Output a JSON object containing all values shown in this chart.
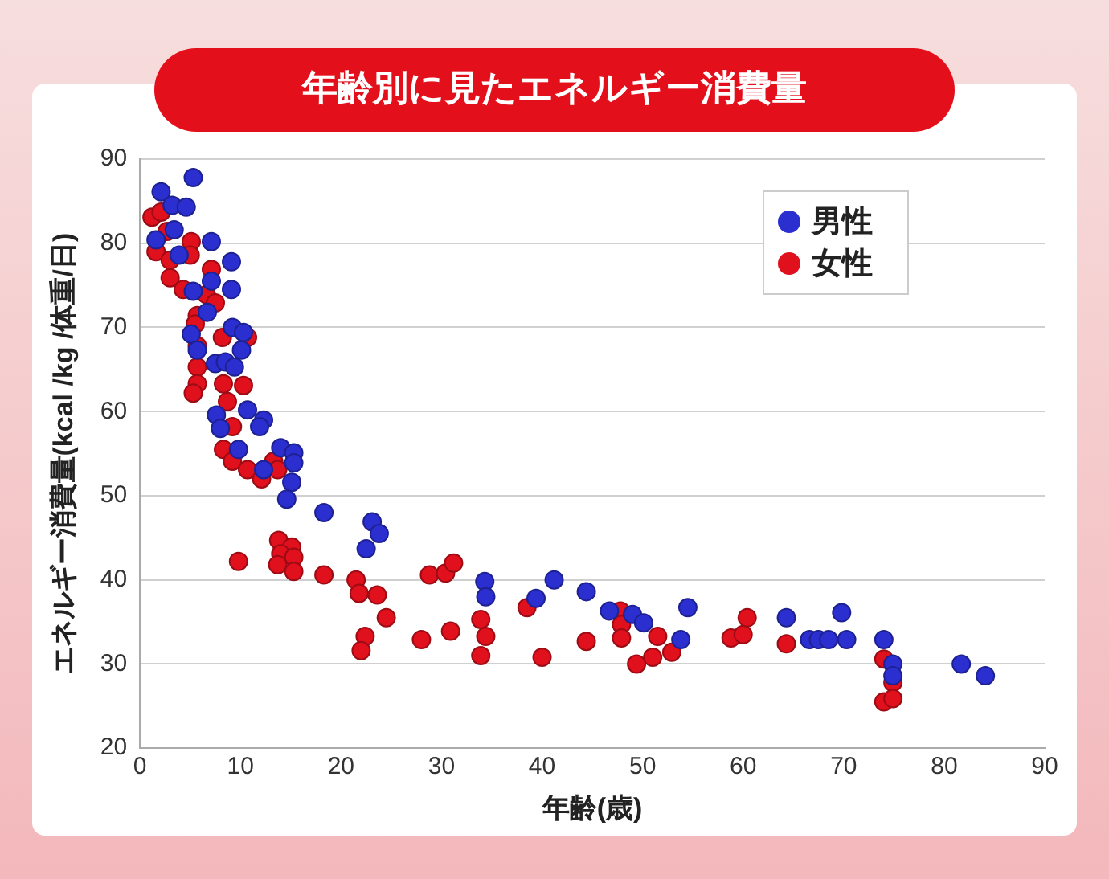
{
  "chart_data": {
    "type": "scatter",
    "title": "年齢別に見たエネルギー消費量",
    "xlabel": "年齢(歳)",
    "ylabel": "エネルギー消費量(kcal /kg /体重/日)",
    "xlim": [
      0,
      90
    ],
    "xticks": [
      0,
      10,
      20,
      30,
      40,
      50,
      60,
      70,
      80,
      90
    ],
    "ylim": [
      20,
      90
    ],
    "yticks": [
      20,
      30,
      40,
      50,
      60,
      70,
      80,
      90
    ],
    "grid": "y",
    "legend": "top right",
    "marker": "circle",
    "series": [
      {
        "name": "男性",
        "color": "#2b2fd0",
        "x": [
          5.3,
          2.1,
          3.2,
          4.6,
          3.4,
          1.6,
          7.1,
          3.9,
          9.1,
          7.1,
          9.1,
          5.3,
          6.7,
          9.2,
          10.3,
          5.1,
          10.1,
          5.7,
          7.5,
          8.5,
          9.4,
          7.6,
          8.0,
          10.7,
          12.3,
          11.9,
          9.8,
          14.0,
          15.3,
          12.3,
          15.3,
          15.1,
          14.6,
          18.3,
          23.1,
          23.8,
          22.5,
          34.3,
          34.4,
          39.4,
          41.2,
          44.4,
          46.7,
          49.0,
          50.1,
          54.5,
          53.8,
          64.3,
          69.8,
          66.6,
          67.5,
          68.5,
          70.3,
          74.0,
          74.9,
          74.9,
          81.7,
          84.1
        ],
        "values": [
          87.8,
          86.1,
          84.5,
          84.3,
          81.6,
          80.4,
          80.2,
          78.6,
          77.8,
          75.5,
          74.5,
          74.3,
          71.8,
          70.0,
          69.4,
          69.2,
          67.3,
          67.3,
          65.7,
          65.9,
          65.3,
          59.6,
          58.0,
          60.2,
          59.0,
          58.2,
          55.5,
          55.7,
          55.1,
          53.1,
          53.9,
          51.6,
          49.6,
          48.0,
          46.9,
          45.5,
          43.7,
          39.8,
          38.0,
          37.8,
          40.0,
          38.6,
          36.3,
          35.9,
          34.9,
          36.7,
          32.9,
          35.5,
          36.1,
          32.9,
          32.9,
          32.9,
          32.9,
          32.9,
          30.0,
          28.6,
          30.0,
          28.6
        ]
      },
      {
        "name": "女性",
        "color": "#e0101c",
        "x": [
          1.2,
          2.1,
          2.7,
          5.1,
          1.6,
          5.0,
          3.0,
          7.1,
          3.0,
          4.3,
          6.6,
          7.5,
          5.7,
          5.5,
          10.7,
          8.2,
          5.7,
          5.7,
          5.7,
          5.3,
          8.3,
          10.3,
          8.7,
          9.2,
          8.3,
          9.2,
          10.7,
          12.1,
          13.3,
          13.7,
          9.8,
          13.8,
          15.1,
          14.0,
          15.3,
          13.7,
          15.3,
          18.3,
          21.5,
          21.8,
          23.6,
          24.5,
          22.4,
          22.0,
          28.0,
          30.9,
          28.8,
          30.4,
          31.2,
          33.9,
          34.4,
          33.9,
          38.5,
          40.0,
          44.4,
          47.8,
          47.9,
          47.9,
          49.4,
          51.0,
          51.5,
          52.9,
          58.8,
          60.0,
          60.4,
          64.3,
          74.0,
          74.9,
          74.0,
          74.9
        ],
        "values": [
          83.1,
          83.7,
          81.4,
          80.2,
          79.0,
          78.6,
          78.0,
          76.9,
          75.9,
          74.5,
          73.9,
          72.9,
          71.4,
          70.4,
          68.8,
          68.8,
          67.8,
          65.3,
          63.3,
          62.2,
          63.3,
          63.1,
          61.2,
          58.2,
          55.5,
          54.1,
          53.1,
          52.0,
          54.1,
          53.1,
          42.2,
          44.7,
          43.9,
          43.1,
          42.7,
          41.8,
          41.0,
          40.6,
          40.0,
          38.4,
          38.2,
          35.5,
          33.3,
          31.6,
          32.9,
          33.9,
          40.6,
          40.8,
          42.0,
          35.3,
          33.3,
          31.0,
          36.7,
          30.8,
          32.7,
          36.3,
          34.7,
          33.1,
          30.0,
          30.8,
          33.3,
          31.4,
          33.1,
          33.5,
          35.5,
          32.4,
          30.6,
          27.8,
          25.5,
          25.9
        ]
      }
    ]
  }
}
